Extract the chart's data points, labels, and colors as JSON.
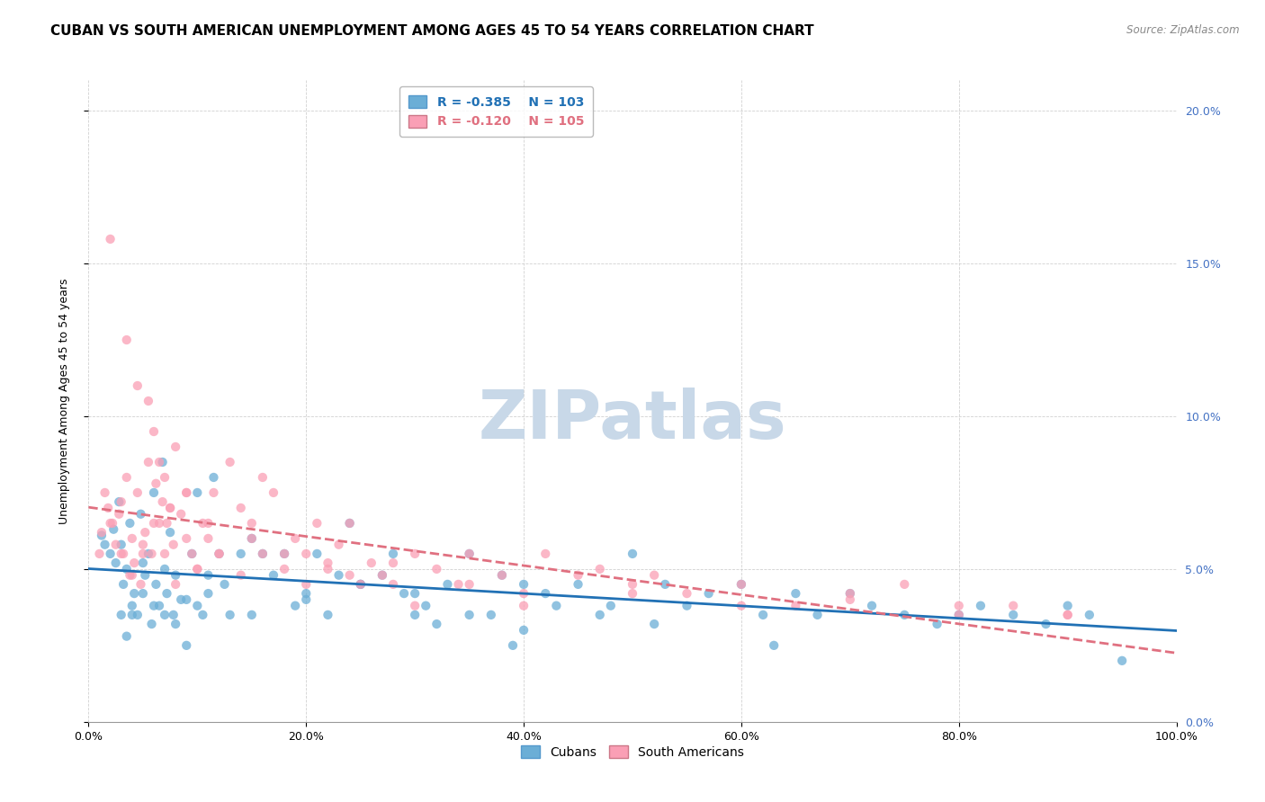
{
  "title": "CUBAN VS SOUTH AMERICAN UNEMPLOYMENT AMONG AGES 45 TO 54 YEARS CORRELATION CHART",
  "source": "Source: ZipAtlas.com",
  "ylabel": "Unemployment Among Ages 45 to 54 years",
  "xlim": [
    0,
    100
  ],
  "ylim": [
    0,
    21
  ],
  "legend_labels": [
    "Cubans",
    "South Americans"
  ],
  "cuban_R": "-0.385",
  "cuban_N": "103",
  "sa_R": "-0.120",
  "sa_N": "105",
  "cuban_color": "#6baed6",
  "sa_color": "#fa9fb5",
  "cuban_line_color": "#2171b5",
  "sa_line_color": "#e07080",
  "watermark": "ZIPatlas",
  "watermark_color": "#c8d8e8",
  "background_color": "#ffffff",
  "grid_color": "#cccccc",
  "title_fontsize": 11,
  "axis_label_fontsize": 9,
  "tick_fontsize": 9,
  "cuban_x": [
    1.2,
    1.5,
    2.0,
    2.3,
    2.5,
    2.8,
    3.0,
    3.2,
    3.5,
    3.8,
    4.0,
    4.2,
    4.5,
    4.8,
    5.0,
    5.2,
    5.5,
    5.8,
    6.0,
    6.2,
    6.5,
    6.8,
    7.0,
    7.2,
    7.5,
    7.8,
    8.0,
    8.5,
    9.0,
    9.5,
    10.0,
    10.5,
    11.0,
    11.5,
    12.0,
    12.5,
    13.0,
    14.0,
    15.0,
    16.0,
    17.0,
    18.0,
    19.0,
    20.0,
    21.0,
    22.0,
    23.0,
    24.0,
    25.0,
    27.0,
    28.0,
    29.0,
    30.0,
    31.0,
    32.0,
    33.0,
    35.0,
    37.0,
    38.0,
    39.0,
    40.0,
    42.0,
    43.0,
    45.0,
    47.0,
    48.0,
    50.0,
    52.0,
    53.0,
    55.0,
    57.0,
    60.0,
    62.0,
    63.0,
    65.0,
    67.0,
    70.0,
    72.0,
    75.0,
    78.0,
    80.0,
    82.0,
    85.0,
    88.0,
    90.0,
    92.0,
    95.0,
    3.0,
    3.5,
    4.0,
    5.0,
    6.0,
    7.0,
    8.0,
    9.0,
    10.0,
    11.0,
    15.0,
    20.0,
    25.0,
    30.0,
    35.0,
    40.0
  ],
  "cuban_y": [
    6.1,
    5.8,
    5.5,
    6.3,
    5.2,
    7.2,
    5.8,
    4.5,
    5.0,
    6.5,
    3.8,
    4.2,
    3.5,
    6.8,
    5.2,
    4.8,
    5.5,
    3.2,
    7.5,
    4.5,
    3.8,
    8.5,
    5.0,
    4.2,
    6.2,
    3.5,
    4.8,
    4.0,
    2.5,
    5.5,
    7.5,
    3.5,
    4.8,
    8.0,
    5.5,
    4.5,
    3.5,
    5.5,
    6.0,
    5.5,
    4.8,
    5.5,
    3.8,
    4.2,
    5.5,
    3.5,
    4.8,
    6.5,
    4.5,
    4.8,
    5.5,
    4.2,
    3.5,
    3.8,
    3.2,
    4.5,
    5.5,
    3.5,
    4.8,
    2.5,
    4.5,
    4.2,
    3.8,
    4.5,
    3.5,
    3.8,
    5.5,
    3.2,
    4.5,
    3.8,
    4.2,
    4.5,
    3.5,
    2.5,
    4.2,
    3.5,
    4.2,
    3.8,
    3.5,
    3.2,
    3.5,
    3.8,
    3.5,
    3.2,
    3.8,
    3.5,
    2.0,
    3.5,
    2.8,
    3.5,
    4.2,
    3.8,
    3.5,
    3.2,
    4.0,
    3.8,
    4.2,
    3.5,
    4.0,
    4.5,
    4.2,
    3.5,
    3.0
  ],
  "sa_x": [
    1.0,
    1.2,
    1.5,
    1.8,
    2.0,
    2.2,
    2.5,
    2.8,
    3.0,
    3.2,
    3.5,
    3.8,
    4.0,
    4.2,
    4.5,
    4.8,
    5.0,
    5.2,
    5.5,
    5.8,
    6.0,
    6.2,
    6.5,
    6.8,
    7.0,
    7.2,
    7.5,
    7.8,
    8.0,
    8.5,
    9.0,
    9.5,
    10.0,
    10.5,
    11.0,
    11.5,
    12.0,
    13.0,
    14.0,
    15.0,
    16.0,
    17.0,
    18.0,
    19.0,
    20.0,
    21.0,
    22.0,
    23.0,
    24.0,
    25.0,
    27.0,
    28.0,
    30.0,
    32.0,
    34.0,
    35.0,
    38.0,
    40.0,
    42.0,
    45.0,
    47.0,
    50.0,
    52.0,
    55.0,
    60.0,
    65.0,
    70.0,
    75.0,
    80.0,
    85.0,
    90.0,
    2.0,
    3.0,
    4.0,
    5.0,
    6.0,
    7.0,
    8.0,
    9.0,
    10.0,
    12.0,
    14.0,
    16.0,
    18.0,
    20.0,
    22.0,
    24.0,
    26.0,
    28.0,
    30.0,
    35.0,
    40.0,
    50.0,
    60.0,
    70.0,
    80.0,
    90.0,
    3.5,
    4.5,
    5.5,
    6.5,
    7.5,
    9.0,
    11.0,
    15.0
  ],
  "sa_y": [
    5.5,
    6.2,
    7.5,
    7.0,
    15.8,
    6.5,
    5.8,
    6.8,
    7.2,
    5.5,
    8.0,
    4.8,
    6.0,
    5.2,
    7.5,
    4.5,
    5.8,
    6.2,
    8.5,
    5.5,
    9.5,
    7.8,
    6.5,
    7.2,
    8.0,
    6.5,
    7.0,
    5.8,
    9.0,
    6.8,
    7.5,
    5.5,
    5.0,
    6.5,
    6.0,
    7.5,
    5.5,
    8.5,
    7.0,
    6.5,
    8.0,
    7.5,
    5.5,
    6.0,
    5.5,
    6.5,
    5.2,
    5.8,
    6.5,
    4.5,
    4.8,
    5.2,
    5.5,
    5.0,
    4.5,
    5.5,
    4.8,
    4.2,
    5.5,
    4.8,
    5.0,
    4.5,
    4.8,
    4.2,
    4.5,
    3.8,
    4.2,
    4.5,
    3.5,
    3.8,
    3.5,
    6.5,
    5.5,
    4.8,
    5.5,
    6.5,
    5.5,
    4.5,
    6.0,
    5.0,
    5.5,
    4.8,
    5.5,
    5.0,
    4.5,
    5.0,
    4.8,
    5.2,
    4.5,
    3.8,
    4.5,
    3.8,
    4.2,
    3.8,
    4.0,
    3.8,
    3.5,
    12.5,
    11.0,
    10.5,
    8.5,
    7.0,
    7.5,
    6.5,
    6.0
  ]
}
